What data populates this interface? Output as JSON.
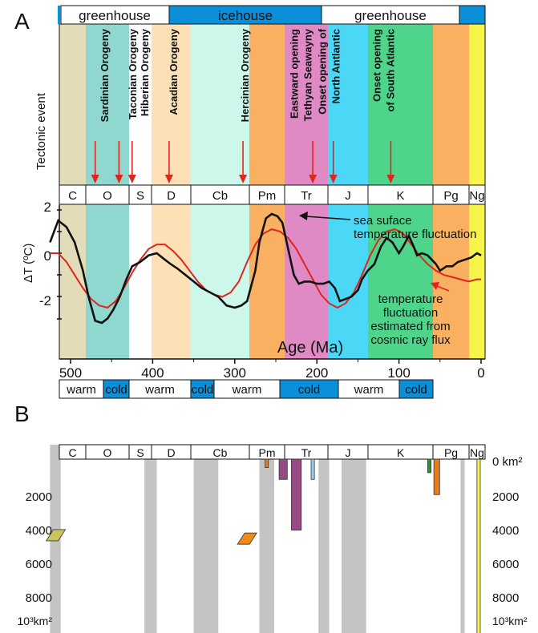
{
  "colors": {
    "C": "#e3dcb8",
    "O": "#8ed8cf",
    "S": "#ffffff",
    "D": "#fde0b5",
    "Cb": "#cdf7eb",
    "Pm": "#f9b161",
    "Tr": "#df8ac4",
    "J": "#4ad8f6",
    "K": "#4ed58b",
    "Pg": "#f9b161",
    "Ng": "#f7f44a",
    "blue": "#0b8fd9",
    "black_curve": "#111111",
    "red_curve": "#e0251f",
    "gray_band": "#c4c4c4"
  },
  "panel_a": {
    "label": "A",
    "climate_top": [
      {
        "label": "greenhouse",
        "style": "white"
      },
      {
        "label": "icehouse",
        "style": "blue"
      },
      {
        "label": "greenhouse",
        "style": "white"
      },
      {
        "label": "",
        "style": "blue"
      }
    ],
    "tectonic_axis_label": "Tectonic event",
    "periods": [
      "C",
      "O",
      "S",
      "D",
      "Cb",
      "Pm",
      "Tr",
      "J",
      "K",
      "Pg",
      "Ng"
    ],
    "events": [
      {
        "lines": [
          "Sardinian Orogeny"
        ],
        "age": 470
      },
      {
        "lines": [
          "Taconian Orogeny"
        ],
        "age": 441
      },
      {
        "lines": [
          "Hiberian Orogeny"
        ],
        "age": 425
      },
      {
        "lines": [
          "Acadian Orogeny"
        ],
        "age": 380
      },
      {
        "lines": [
          "Hercinian Orogeny"
        ],
        "age": 290
      },
      {
        "lines": [
          "Eastward opening",
          "Tethyan Seawayny"
        ],
        "age": 205
      },
      {
        "lines": [
          "Onset opening of",
          "North Antlantic"
        ],
        "age": 180
      },
      {
        "lines": [
          "Onset opening",
          "of South Atlantic"
        ],
        "age": 110
      }
    ],
    "y_axis_label": "ΔT (ºC)",
    "y_ticks": [
      "2",
      "0",
      "-2"
    ],
    "x_axis_title": "Age (Ma)",
    "x_ticks": [
      "500",
      "400",
      "300",
      "200",
      "100",
      "0"
    ],
    "annotation_black": [
      "sea suface",
      "temperature fluctuation"
    ],
    "annotation_red": [
      "temperature",
      "fluctuation",
      "estimated from",
      "cosmic ray flux"
    ],
    "climate_bottom": [
      {
        "label": "warm",
        "style": "white"
      },
      {
        "label": "cold",
        "style": "blue"
      },
      {
        "label": "warm",
        "style": "white"
      },
      {
        "label": "cold",
        "style": "blue"
      },
      {
        "label": "warm",
        "style": "white"
      },
      {
        "label": "cold",
        "style": "blue"
      },
      {
        "label": "warm",
        "style": "white"
      },
      {
        "label": "cold",
        "style": "blue"
      }
    ]
  },
  "panel_b": {
    "label": "B",
    "periods": [
      "C",
      "O",
      "S",
      "D",
      "Cb",
      "Pm",
      "Tr",
      "J",
      "K",
      "Pg",
      "Ng"
    ],
    "y_ticks_left": [
      "2000",
      "4000",
      "6000",
      "8000"
    ],
    "y_unit_left": "10³km²",
    "y_ticks_right": [
      "0 km²",
      "2000",
      "4000",
      "6000",
      "8000",
      "10³km²"
    ]
  },
  "chart_data": [
    {
      "type": "line",
      "xlabel": "Age (Ma)",
      "ylabel": "ΔT (ºC)",
      "xlim": [
        525,
        0
      ],
      "ylim": [
        -4.8,
        2.5
      ],
      "series": [
        {
          "name": "sea suface temperature fluctuation",
          "color": "#111111",
          "x": [
            525,
            515,
            505,
            495,
            485,
            478,
            470,
            462,
            455,
            448,
            440,
            432,
            425,
            415,
            405,
            395,
            385,
            378,
            370,
            360,
            350,
            340,
            330,
            320,
            310,
            300,
            292,
            285,
            275,
            270,
            262,
            255,
            248,
            242,
            235,
            228,
            222,
            215,
            208,
            200,
            192,
            185,
            178,
            172,
            165,
            158,
            150,
            145,
            138,
            130,
            122,
            115,
            108,
            100,
            95,
            88,
            82,
            78,
            72,
            65,
            60,
            55,
            50,
            42,
            35,
            28,
            20,
            12,
            5,
            0
          ],
          "y": [
            0.5,
            1.5,
            1.2,
            0.5,
            -0.8,
            -2.0,
            -3.1,
            -3.2,
            -3.0,
            -2.6,
            -2.0,
            -1.2,
            -0.6,
            -0.4,
            -0.1,
            0.0,
            -0.3,
            -0.5,
            -0.7,
            -1.0,
            -1.3,
            -1.6,
            -1.8,
            -2.0,
            -2.4,
            -2.5,
            -2.4,
            -2.2,
            -0.8,
            0.5,
            1.6,
            1.8,
            1.7,
            1.4,
            0.2,
            -1.0,
            -1.4,
            -1.3,
            -1.3,
            -1.4,
            -1.4,
            -1.3,
            -1.6,
            -2.2,
            -2.1,
            -2.0,
            -1.7,
            -1.2,
            -0.8,
            -0.5,
            0.3,
            0.7,
            0.5,
            0.0,
            0.3,
            0.8,
            0.3,
            -0.1,
            0.0,
            -0.1,
            -0.3,
            -0.5,
            -0.8,
            -0.6,
            -0.6,
            -0.4,
            -0.3,
            -0.2,
            0.0,
            -0.1
          ]
        },
        {
          "name": "temperature fluctuation estimated from cosmic ray flux",
          "color": "#e0251f",
          "x": [
            525,
            515,
            505,
            495,
            485,
            475,
            465,
            455,
            445,
            435,
            425,
            415,
            405,
            395,
            385,
            375,
            365,
            355,
            345,
            335,
            325,
            315,
            305,
            295,
            285,
            275,
            265,
            255,
            245,
            235,
            225,
            215,
            205,
            195,
            185,
            175,
            165,
            155,
            145,
            135,
            125,
            115,
            105,
            95,
            85,
            75,
            65,
            55,
            45,
            35,
            25,
            15,
            5,
            0
          ],
          "y": [
            0.0,
            0.0,
            -0.4,
            -1.0,
            -1.6,
            -2.1,
            -2.4,
            -2.5,
            -2.2,
            -1.6,
            -0.9,
            -0.3,
            0.2,
            0.4,
            0.4,
            0.1,
            -0.3,
            -0.8,
            -1.3,
            -1.7,
            -1.9,
            -2.0,
            -1.8,
            -1.3,
            -0.4,
            0.4,
            0.9,
            1.1,
            1.0,
            0.7,
            0.2,
            -0.5,
            -1.2,
            -1.9,
            -2.3,
            -2.5,
            -2.3,
            -1.8,
            -1.0,
            -0.1,
            0.6,
            1.0,
            1.1,
            0.9,
            0.4,
            -0.1,
            -0.5,
            -0.8,
            -1.0,
            -1.1,
            -1.2,
            -1.3,
            -1.2,
            -1.2
          ]
        }
      ]
    },
    {
      "type": "bar",
      "xlim": [
        525,
        0
      ],
      "ylim": [
        0,
        10500
      ],
      "gray_bands": [
        [
          525,
          512
        ],
        [
          410,
          395
        ],
        [
          350,
          320
        ],
        [
          270,
          252
        ],
        [
          198,
          185
        ],
        [
          170,
          140
        ],
        [
          25,
          20
        ]
      ],
      "bars": [
        {
          "age": 261,
          "width": 4,
          "value": 500,
          "color": "#e87b1e"
        },
        {
          "age": 241,
          "width": 10,
          "value": 1200,
          "color": "#984a85"
        },
        {
          "age": 225,
          "width": 12,
          "value": 4200,
          "color": "#984a85"
        },
        {
          "age": 205,
          "width": 4,
          "value": 1200,
          "color": "#8ed2f0"
        },
        {
          "age": 63,
          "width": 4,
          "value": 800,
          "color": "#2f8f3a"
        },
        {
          "age": 54,
          "width": 7,
          "value": 2100,
          "color": "#e87b1e"
        },
        {
          "age": 3,
          "width": 4,
          "value": 10500,
          "color": "#f7f44a"
        }
      ],
      "markers": [
        {
          "age": 518,
          "value": 4500,
          "color": "#c9c45c"
        },
        {
          "age": 285,
          "value": 4700,
          "color": "#f08a1c"
        }
      ]
    }
  ]
}
